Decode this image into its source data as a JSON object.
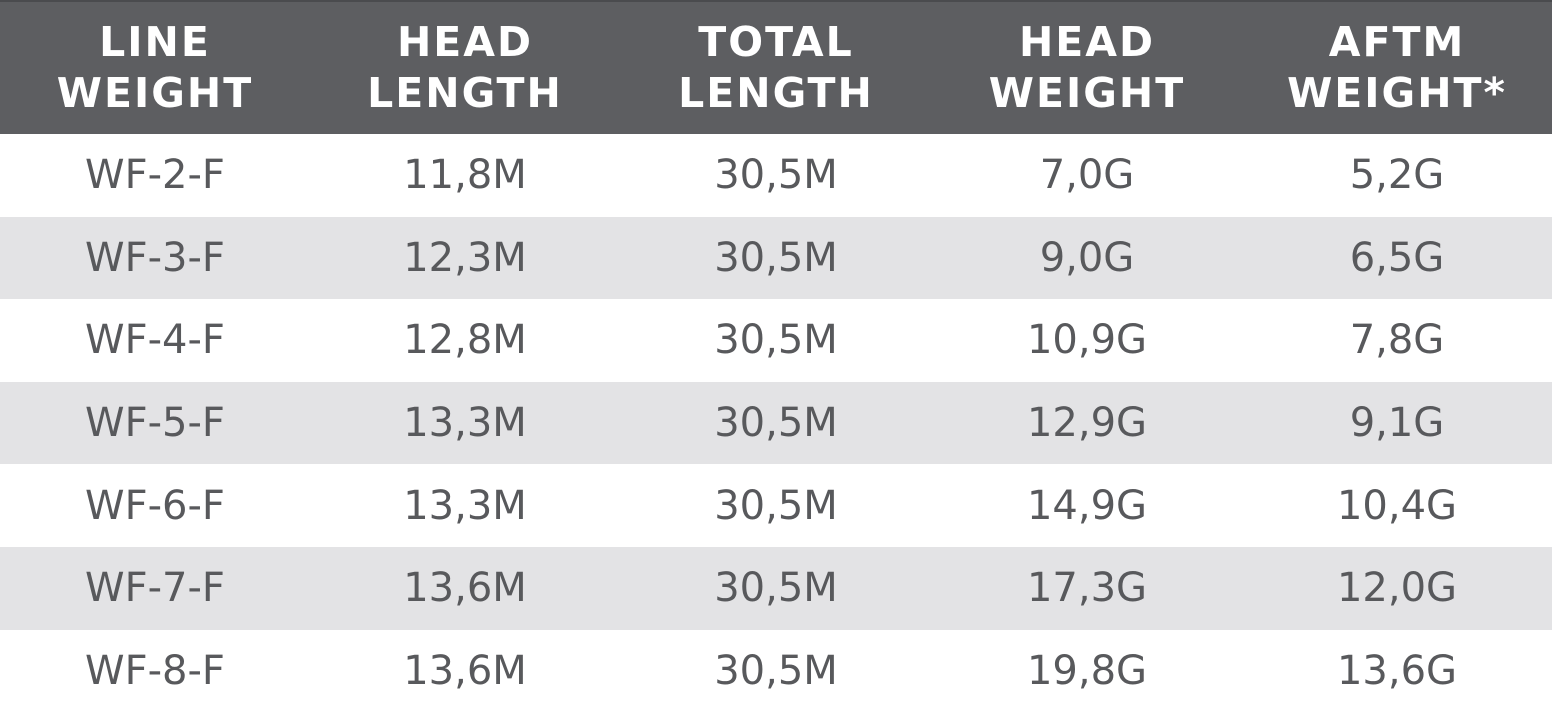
{
  "table": {
    "headers": [
      {
        "line1": "LINE",
        "line2": "WEIGHT"
      },
      {
        "line1": "HEAD",
        "line2": "LENGTH"
      },
      {
        "line1": "TOTAL",
        "line2": "LENGTH"
      },
      {
        "line1": "HEAD",
        "line2": "WEIGHT"
      },
      {
        "line1": "AFTM",
        "line2": "WEIGHT*"
      }
    ],
    "rows": [
      [
        "WF-2-F",
        "11,8M",
        "30,5M",
        "7,0G",
        "5,2G"
      ],
      [
        "WF-3-F",
        "12,3M",
        "30,5M",
        "9,0G",
        "6,5G"
      ],
      [
        "WF-4-F",
        "12,8M",
        "30,5M",
        "10,9G",
        "7,8G"
      ],
      [
        "WF-5-F",
        "13,3M",
        "30,5M",
        "12,9G",
        "9,1G"
      ],
      [
        "WF-6-F",
        "13,3M",
        "30,5M",
        "14,9G",
        "10,4G"
      ],
      [
        "WF-7-F",
        "13,6M",
        "30,5M",
        "17,3G",
        "12,0G"
      ],
      [
        "WF-8-F",
        "13,6M",
        "30,5M",
        "19,8G",
        "13,6G"
      ]
    ]
  },
  "colors": {
    "header_bg": "#5d5e61",
    "header_text": "#ffffff",
    "row_alt_bg": "#e3e3e5",
    "cell_text": "#58595c"
  }
}
